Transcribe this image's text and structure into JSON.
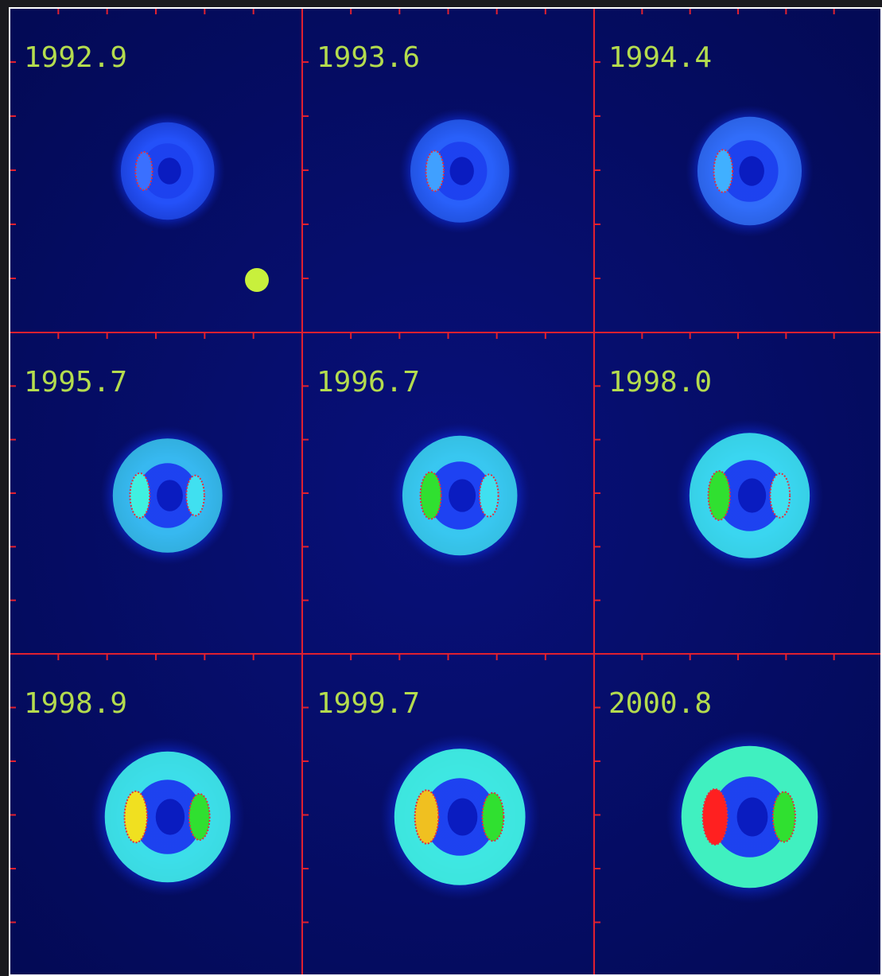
{
  "panels": [
    {
      "label": "1992.9"
    },
    {
      "label": "1993.6"
    },
    {
      "label": "1994.4"
    },
    {
      "label": "1995.7"
    },
    {
      "label": "1996.7"
    },
    {
      "label": "1998.0"
    },
    {
      "label": "1998.9"
    },
    {
      "label": "1999.7"
    },
    {
      "label": "2000.8"
    }
  ]
}
